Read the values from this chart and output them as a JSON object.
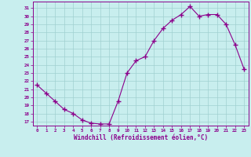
{
  "x": [
    0,
    1,
    2,
    3,
    4,
    5,
    6,
    7,
    8,
    9,
    10,
    11,
    12,
    13,
    14,
    15,
    16,
    17,
    18,
    19,
    20,
    21,
    22,
    23
  ],
  "y": [
    21.5,
    20.5,
    19.5,
    18.5,
    18.0,
    17.2,
    16.8,
    16.7,
    16.7,
    19.5,
    23.0,
    24.5,
    25.0,
    27.0,
    28.5,
    29.5,
    30.2,
    31.2,
    30.0,
    30.2,
    30.2,
    29.0,
    26.5,
    23.5
  ],
  "line_color": "#8b008b",
  "marker": "+",
  "marker_color": "#8b008b",
  "bg_color": "#c8eeee",
  "grid_color": "#a0d0d0",
  "xlabel": "Windchill (Refroidissement éolien,°C)",
  "ylabel_ticks": [
    17,
    18,
    19,
    20,
    21,
    22,
    23,
    24,
    25,
    26,
    27,
    28,
    29,
    30,
    31
  ],
  "xlim": [
    -0.5,
    23.5
  ],
  "ylim": [
    16.5,
    31.8
  ],
  "xtick_labels": [
    "0",
    "1",
    "2",
    "3",
    "4",
    "5",
    "6",
    "7",
    "8",
    "9",
    "10",
    "11",
    "12",
    "13",
    "14",
    "15",
    "16",
    "17",
    "18",
    "19",
    "20",
    "21",
    "22",
    "23"
  ],
  "xlabel_color": "#8b008b",
  "tick_color": "#8b008b",
  "axis_color": "#8b008b"
}
